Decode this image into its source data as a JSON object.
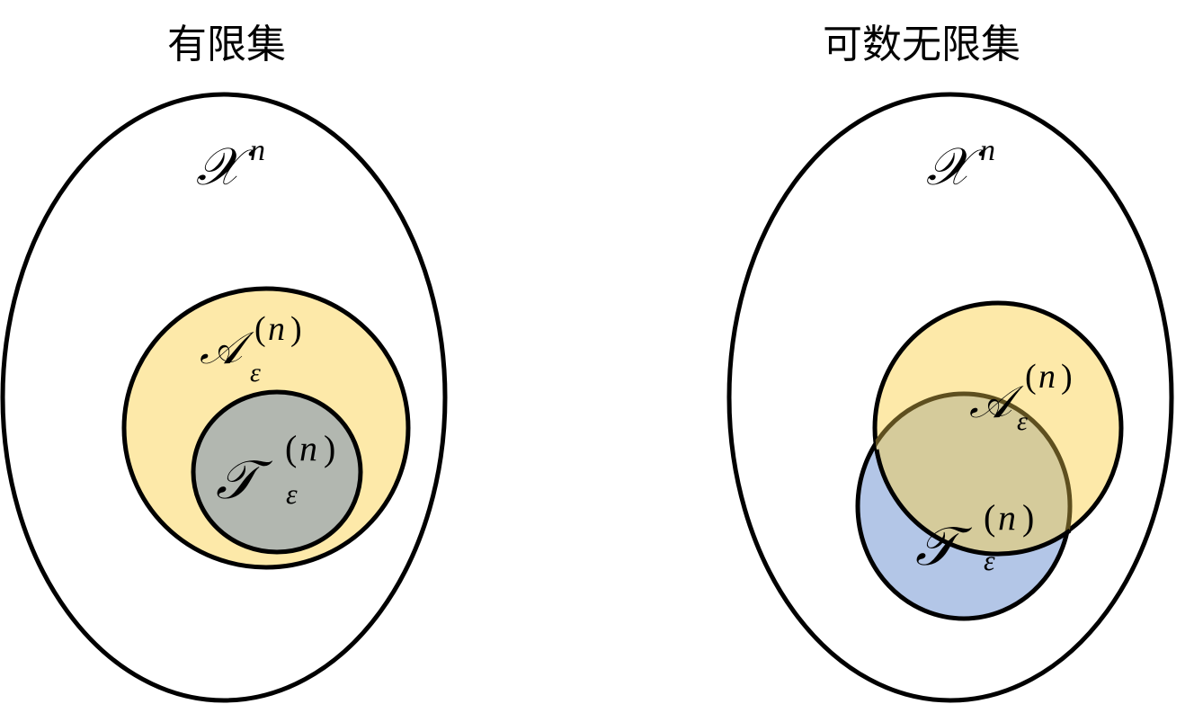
{
  "panels": [
    {
      "title": "有限集",
      "universe_label": {
        "symbol": "𝒳",
        "sup": "n"
      },
      "set_a_label": {
        "symbol": "𝒜",
        "sup_open": "(",
        "sup_n": "n",
        "sup_close": ")",
        "sub": "ε"
      },
      "set_t_label": {
        "symbol": "𝒯",
        "sup_open": "(",
        "sup_n": "n",
        "sup_close": ")",
        "sub": "ε"
      }
    },
    {
      "title": "可数无限集",
      "universe_label": {
        "symbol": "𝒳",
        "sup": "n"
      },
      "set_a_label": {
        "symbol": "𝒜",
        "sup_open": "(",
        "sup_n": "n",
        "sup_close": ")",
        "sub": "ε"
      },
      "set_t_label": {
        "symbol": "𝒯",
        "sup_open": "(",
        "sup_n": "n",
        "sup_close": ")",
        "sub": "ε"
      }
    }
  ],
  "colors": {
    "outline": "#000000",
    "universe_fill": "#ffffff",
    "set_a_fill": "#fde9a9",
    "set_t_fill_nested": "#b2b7b0",
    "set_t_fill_overlap": "#b3c6e7",
    "overlap_fill": "#d5cb9b",
    "overlap_outline": "#5e4f1f"
  }
}
